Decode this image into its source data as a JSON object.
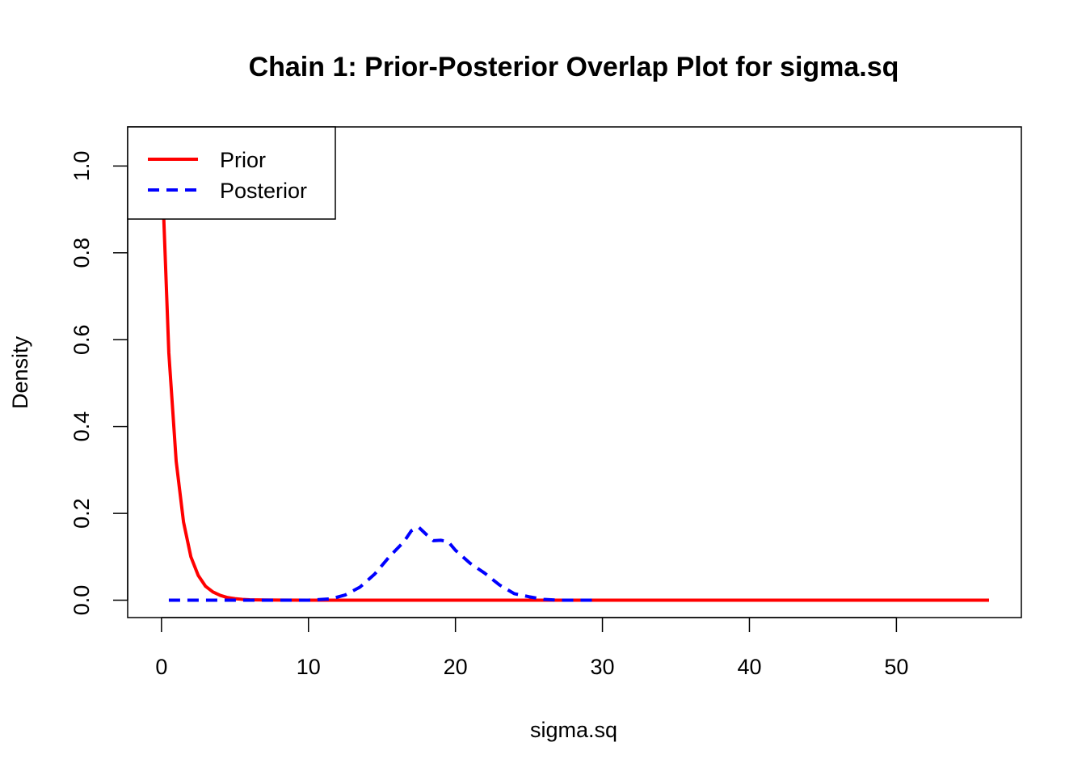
{
  "chart_data": {
    "type": "line",
    "title": "Chain 1: Prior-Posterior Overlap Plot for sigma.sq",
    "xlabel": "sigma.sq",
    "ylabel": "Density",
    "xlim": [
      -2.3,
      58.5
    ],
    "ylim": [
      -0.04,
      1.09
    ],
    "xticks": [
      0,
      10,
      20,
      30,
      40,
      50
    ],
    "yticks": [
      0.0,
      0.2,
      0.4,
      0.6,
      0.8,
      1.0
    ],
    "xtick_labels": [
      "0",
      "10",
      "20",
      "30",
      "40",
      "50"
    ],
    "ytick_labels": [
      "0.0",
      "0.2",
      "0.4",
      "0.6",
      "0.8",
      "1.0"
    ],
    "grid": false,
    "legend_position": "top-left",
    "series": [
      {
        "name": "Prior",
        "color": "#ff0000",
        "style": "solid",
        "x": [
          0.1,
          0.5,
          1.0,
          1.5,
          2.0,
          2.5,
          3.0,
          3.5,
          4.0,
          4.5,
          5.0,
          5.5,
          6.0,
          7.0,
          8.0,
          10.0,
          15.0,
          20.0,
          30.0,
          40.0,
          50.0,
          56.3
        ],
        "y": [
          0.93,
          0.57,
          0.32,
          0.18,
          0.1,
          0.057,
          0.032,
          0.019,
          0.011,
          0.006,
          0.0035,
          0.002,
          0.001,
          0.0005,
          0.0002,
          0.0,
          0.0,
          0.0,
          0.0,
          0.0,
          0.0,
          0.0
        ]
      },
      {
        "name": "Posterior",
        "color": "#0000ff",
        "style": "dashed",
        "x": [
          0.5,
          5.0,
          10.0,
          11.5,
          12.5,
          13.5,
          14.5,
          15.5,
          16.5,
          17.0,
          17.5,
          18.0,
          18.5,
          19.0,
          19.5,
          20.0,
          21.0,
          22.0,
          23.0,
          24.0,
          25.0,
          26.0,
          27.0,
          29.3
        ],
        "y": [
          0.0,
          0.0,
          0.0,
          0.003,
          0.012,
          0.03,
          0.06,
          0.1,
          0.135,
          0.16,
          0.168,
          0.152,
          0.137,
          0.138,
          0.135,
          0.115,
          0.085,
          0.062,
          0.035,
          0.015,
          0.008,
          0.002,
          0.0,
          0.0
        ]
      }
    ]
  }
}
